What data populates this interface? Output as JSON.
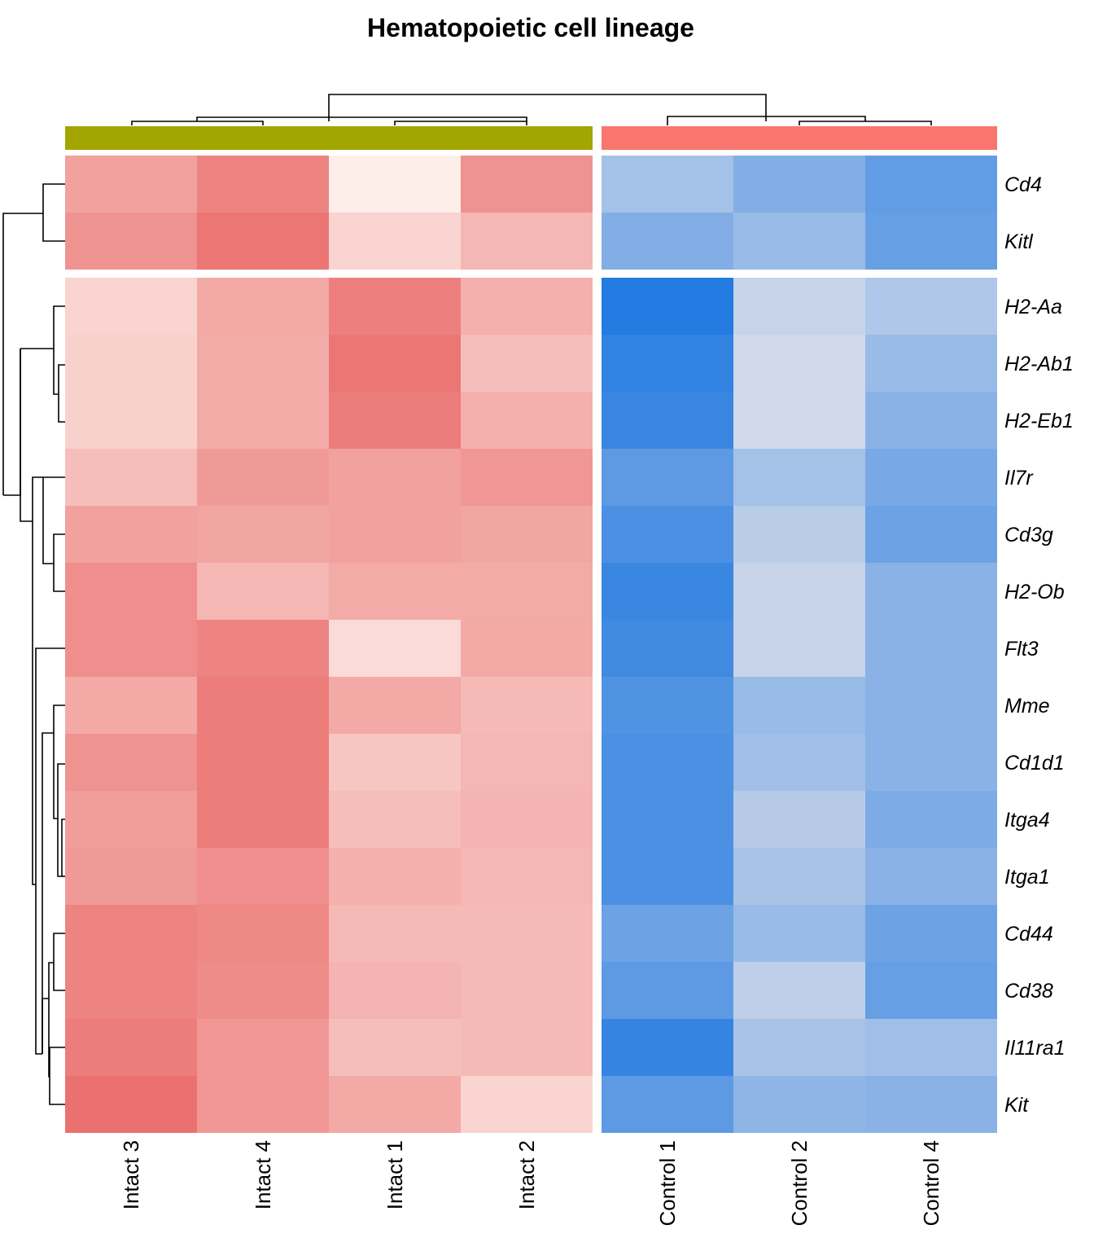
{
  "chart_data": {
    "type": "heatmap",
    "title": "Hematopoietic cell lineage",
    "columns": [
      "Intact 3",
      "Intact 4",
      "Intact 1",
      "Intact 2",
      "Control 1",
      "Control 2",
      "Control 4"
    ],
    "column_groups": [
      {
        "name": "Intact",
        "color": "#A3A500",
        "members": [
          "Intact 3",
          "Intact 4",
          "Intact 1",
          "Intact 2"
        ]
      },
      {
        "name": "Control",
        "color": "#F8766D",
        "members": [
          "Control 1",
          "Control 2",
          "Control 4"
        ]
      }
    ],
    "rows": [
      "Cd4",
      "Kitl",
      "H2-Aa",
      "H2-Ab1",
      "H2-Eb1",
      "Il7r",
      "Cd3g",
      "H2-Ob",
      "Flt3",
      "Mme",
      "Cd1d1",
      "Itga4",
      "Itga1",
      "Cd44",
      "Cd38",
      "Il11ra1",
      "Kit"
    ],
    "row_split_after": 2,
    "column_split_after": 4,
    "color_scale": {
      "low": "#1F78E0",
      "mid": "#FDF1EC",
      "high": "#E8605F",
      "range": [
        -1,
        1
      ]
    },
    "values": [
      [
        0.55,
        0.75,
        0.02,
        0.65,
        -0.4,
        -0.55,
        -0.7
      ],
      [
        0.65,
        0.85,
        0.2,
        0.4,
        -0.55,
        -0.45,
        -0.68
      ],
      [
        0.2,
        0.5,
        0.78,
        0.45,
        -0.98,
        -0.25,
        -0.35
      ],
      [
        0.22,
        0.48,
        0.85,
        0.35,
        -0.92,
        -0.2,
        -0.45
      ],
      [
        0.22,
        0.48,
        0.8,
        0.45,
        -0.88,
        -0.2,
        -0.52
      ],
      [
        0.35,
        0.6,
        0.55,
        0.62,
        -0.72,
        -0.4,
        -0.6
      ],
      [
        0.55,
        0.52,
        0.55,
        0.52,
        -0.8,
        -0.3,
        -0.65
      ],
      [
        0.68,
        0.4,
        0.48,
        0.48,
        -0.88,
        -0.25,
        -0.52
      ],
      [
        0.68,
        0.75,
        0.15,
        0.5,
        -0.85,
        -0.25,
        -0.52
      ],
      [
        0.5,
        0.8,
        0.5,
        0.38,
        -0.78,
        -0.45,
        -0.52
      ],
      [
        0.65,
        0.8,
        0.3,
        0.4,
        -0.8,
        -0.42,
        -0.52
      ],
      [
        0.58,
        0.8,
        0.35,
        0.42,
        -0.8,
        -0.32,
        -0.58
      ],
      [
        0.6,
        0.68,
        0.45,
        0.4,
        -0.8,
        -0.38,
        -0.52
      ],
      [
        0.75,
        0.72,
        0.38,
        0.38,
        -0.65,
        -0.45,
        -0.65
      ],
      [
        0.75,
        0.7,
        0.42,
        0.38,
        -0.72,
        -0.28,
        -0.68
      ],
      [
        0.8,
        0.62,
        0.35,
        0.38,
        -0.9,
        -0.38,
        -0.42
      ],
      [
        0.88,
        0.62,
        0.5,
        0.2,
        -0.72,
        -0.5,
        -0.52
      ]
    ]
  }
}
